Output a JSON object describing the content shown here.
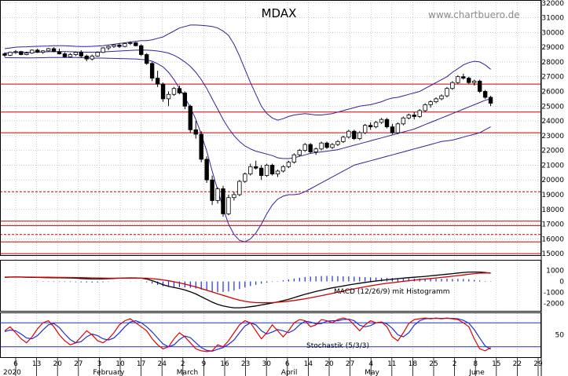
{
  "title": "MDAX",
  "watermark": "www.chartbuero.de",
  "chart_data": {
    "type": "candlestick",
    "price_axis": {
      "ticks": [
        15000,
        16000,
        17000,
        18000,
        19000,
        20000,
        21000,
        22000,
        23000,
        24000,
        25000,
        26000,
        27000,
        28000,
        29000,
        30000,
        31000,
        32000
      ],
      "labels": [
        "15000",
        "16000",
        "17000",
        "18000",
        "19000",
        "20000",
        "21000",
        "22000",
        "23000",
        "24000",
        "25000",
        "26000",
        "27000",
        "28000",
        "29000",
        "30000",
        "31000",
        "32000"
      ],
      "range": [
        14900,
        32200
      ]
    },
    "x_axis": {
      "day_labels": [
        "6",
        "13",
        "20",
        "27",
        "3",
        "10",
        "17",
        "24",
        "2",
        "9",
        "16",
        "23",
        "30",
        "6",
        "14",
        "20",
        "27",
        "4",
        "11",
        "18",
        "25",
        "2",
        "8",
        "15",
        "22",
        "29"
      ],
      "month_labels": [
        "2020",
        "February",
        "March",
        "April",
        "May",
        "June"
      ]
    },
    "horizontal_lines": [
      {
        "value": 26500,
        "style": "solid"
      },
      {
        "value": 24600,
        "style": "solid"
      },
      {
        "value": 23200,
        "style": "solid"
      },
      {
        "value": 19200,
        "style": "dashed"
      },
      {
        "value": 17200,
        "style": "solid"
      },
      {
        "value": 16900,
        "style": "solid"
      },
      {
        "value": 16300,
        "style": "dashed"
      },
      {
        "value": 15800,
        "style": "solid"
      },
      {
        "value": 15000,
        "style": "solid"
      }
    ],
    "candles": [
      [
        28550,
        28650,
        28350,
        28450
      ],
      [
        28450,
        28700,
        28400,
        28650
      ],
      [
        28650,
        28800,
        28550,
        28700
      ],
      [
        28700,
        28750,
        28450,
        28500
      ],
      [
        28500,
        28700,
        28450,
        28600
      ],
      [
        28600,
        28850,
        28550,
        28800
      ],
      [
        28800,
        28900,
        28600,
        28650
      ],
      [
        28650,
        28800,
        28550,
        28750
      ],
      [
        28750,
        28950,
        28700,
        28900
      ],
      [
        28900,
        29000,
        28650,
        28700
      ],
      [
        28700,
        28900,
        28500,
        28550
      ],
      [
        28550,
        28650,
        28300,
        28350
      ],
      [
        28350,
        28600,
        28300,
        28500
      ],
      [
        28500,
        28700,
        28400,
        28650
      ],
      [
        28650,
        28800,
        28300,
        28400
      ],
      [
        28400,
        28500,
        28050,
        28200
      ],
      [
        28200,
        28500,
        28100,
        28400
      ],
      [
        28400,
        28700,
        28350,
        28650
      ],
      [
        28650,
        29000,
        28600,
        28950
      ],
      [
        28950,
        29100,
        28800,
        29050
      ],
      [
        29050,
        29200,
        28950,
        29150
      ],
      [
        29150,
        29250,
        28950,
        29050
      ],
      [
        29050,
        29300,
        29000,
        29250
      ],
      [
        29250,
        29400,
        29150,
        29300
      ],
      [
        29300,
        29350,
        29050,
        29100
      ],
      [
        29100,
        29200,
        28400,
        28500
      ],
      [
        28500,
        28600,
        27800,
        27900
      ],
      [
        27900,
        28000,
        26700,
        26900
      ],
      [
        26900,
        27400,
        26300,
        26500
      ],
      [
        26500,
        26600,
        25300,
        25500
      ],
      [
        25500,
        26000,
        25000,
        25800
      ],
      [
        25800,
        26300,
        25700,
        26200
      ],
      [
        26200,
        26400,
        25800,
        25900
      ],
      [
        25900,
        26000,
        24800,
        25000
      ],
      [
        25000,
        25100,
        23200,
        23400
      ],
      [
        23400,
        24000,
        22800,
        23100
      ],
      [
        23100,
        23300,
        21200,
        21400
      ],
      [
        21400,
        21600,
        19800,
        20000
      ],
      [
        20000,
        20300,
        18300,
        18600
      ],
      [
        18600,
        19500,
        18400,
        19400
      ],
      [
        19400,
        19600,
        17500,
        17700
      ],
      [
        17700,
        19000,
        17600,
        18800
      ],
      [
        18800,
        19200,
        18600,
        19000
      ],
      [
        19000,
        20000,
        18900,
        19900
      ],
      [
        19900,
        20500,
        19800,
        20400
      ],
      [
        20400,
        21100,
        20300,
        20900
      ],
      [
        20900,
        21300,
        20700,
        20800
      ],
      [
        20800,
        21000,
        20000,
        20300
      ],
      [
        20300,
        21100,
        20200,
        21000
      ],
      [
        21000,
        21100,
        20300,
        20400
      ],
      [
        20400,
        20700,
        20200,
        20600
      ],
      [
        20600,
        21000,
        20500,
        20900
      ],
      [
        20900,
        21300,
        20800,
        21200
      ],
      [
        21200,
        21800,
        21100,
        21700
      ],
      [
        21700,
        22100,
        21600,
        22000
      ],
      [
        22000,
        22500,
        21900,
        22400
      ],
      [
        22400,
        22500,
        21800,
        21900
      ],
      [
        21900,
        22200,
        21700,
        22100
      ],
      [
        22100,
        22600,
        22000,
        22500
      ],
      [
        22500,
        22600,
        22100,
        22200
      ],
      [
        22200,
        22500,
        22100,
        22400
      ],
      [
        22400,
        22700,
        22300,
        22600
      ],
      [
        22600,
        23000,
        22500,
        22900
      ],
      [
        22900,
        23400,
        22800,
        23300
      ],
      [
        23300,
        23400,
        22700,
        22800
      ],
      [
        22800,
        23300,
        22700,
        23200
      ],
      [
        23200,
        23800,
        23100,
        23700
      ],
      [
        23700,
        23900,
        23400,
        23600
      ],
      [
        23600,
        24000,
        23500,
        23900
      ],
      [
        23900,
        24200,
        23800,
        24100
      ],
      [
        24100,
        24200,
        23500,
        23600
      ],
      [
        23600,
        23800,
        23100,
        23200
      ],
      [
        23200,
        23900,
        23100,
        23800
      ],
      [
        23800,
        24300,
        23700,
        24200
      ],
      [
        24200,
        24500,
        24100,
        24400
      ],
      [
        24400,
        24600,
        24100,
        24300
      ],
      [
        24300,
        24800,
        24200,
        24700
      ],
      [
        24700,
        25200,
        24600,
        25100
      ],
      [
        25100,
        25400,
        24900,
        25300
      ],
      [
        25300,
        25600,
        25200,
        25500
      ],
      [
        25500,
        25800,
        25400,
        25700
      ],
      [
        25700,
        26300,
        25600,
        26200
      ],
      [
        26200,
        26700,
        26100,
        26600
      ],
      [
        26600,
        27100,
        26500,
        27000
      ],
      [
        27000,
        27200,
        26800,
        26900
      ],
      [
        26900,
        27000,
        26500,
        26600
      ],
      [
        26600,
        26800,
        26400,
        26700
      ],
      [
        26700,
        26800,
        25900,
        26000
      ],
      [
        26000,
        26100,
        25500,
        25600
      ],
      [
        25600,
        25700,
        25000,
        25200
      ]
    ],
    "bollinger_upper": [
      28900,
      28950,
      29000,
      29020,
      29030,
      29050,
      29060,
      29070,
      29080,
      29100,
      29100,
      29100,
      29080,
      29060,
      29050,
      29050,
      29060,
      29080,
      29100,
      29150,
      29200,
      29250,
      29300,
      29350,
      29400,
      29450,
      29450,
      29500,
      29600,
      29700,
      29900,
      30100,
      30300,
      30400,
      30500,
      30500,
      30480,
      30450,
      30400,
      30300,
      30100,
      29800,
      29200,
      28400,
      27500,
      26600,
      25800,
      25000,
      24500,
      24200,
      24050,
      24150,
      24300,
      24400,
      24450,
      24500,
      24450,
      24400,
      24400,
      24450,
      24500,
      24600,
      24700,
      24800,
      24900,
      25000,
      25050,
      25100,
      25200,
      25300,
      25450,
      25550,
      25600,
      25700,
      25800,
      25900,
      26000,
      26200,
      26400,
      26600,
      26800,
      27000,
      27300,
      27550,
      27800,
      27950,
      28050,
      28000,
      27800,
      27500
    ],
    "bollinger_middle": [
      28600,
      28620,
      28640,
      28650,
      28650,
      28660,
      28670,
      28680,
      28690,
      28700,
      28700,
      28700,
      28690,
      28680,
      28670,
      28660,
      28660,
      28670,
      28680,
      28700,
      28720,
      28740,
      28760,
      28780,
      28800,
      28810,
      28800,
      28780,
      28740,
      28680,
      28600,
      28450,
      28250,
      28000,
      27700,
      27300,
      26800,
      26200,
      25500,
      24800,
      24100,
      23500,
      23000,
      22600,
      22300,
      22100,
      21950,
      21850,
      21750,
      21650,
      21500,
      21450,
      21450,
      21500,
      21600,
      21700,
      21800,
      21850,
      21900,
      21950,
      22000,
      22050,
      22150,
      22250,
      22350,
      22450,
      22550,
      22650,
      22750,
      22850,
      22950,
      23050,
      23150,
      23250,
      23350,
      23450,
      23600,
      23750,
      23900,
      24050,
      24200,
      24350,
      24500,
      24650,
      24800,
      24950,
      25100,
      25250,
      25400,
      25500
    ],
    "bollinger_lower": [
      28300,
      28290,
      28280,
      28280,
      28270,
      28270,
      28280,
      28290,
      28300,
      28300,
      28300,
      28300,
      28300,
      28300,
      28290,
      28270,
      28260,
      28260,
      28260,
      28250,
      28240,
      28230,
      28220,
      28210,
      28200,
      28170,
      28150,
      28050,
      27880,
      27660,
      27300,
      26800,
      26200,
      25600,
      24900,
      24100,
      23100,
      21950,
      20600,
      19300,
      18100,
      17000,
      16300,
      15900,
      15800,
      16000,
      16400,
      17000,
      17700,
      18300,
      18700,
      18900,
      19000,
      19000,
      19050,
      19200,
      19400,
      19600,
      19800,
      20000,
      20200,
      20400,
      20600,
      20800,
      21000,
      21100,
      21200,
      21300,
      21400,
      21500,
      21600,
      21700,
      21800,
      21900,
      22000,
      22100,
      22200,
      22300,
      22400,
      22500,
      22600,
      22650,
      22700,
      22800,
      22900,
      23000,
      23100,
      23200,
      23400,
      23600
    ],
    "macd": {
      "label": "MACD (12/26/9) mit Histogramm",
      "ticks": [
        1000,
        0,
        -1000,
        -2000
      ],
      "labels": [
        "1000",
        "0",
        "-1000",
        "-2000"
      ],
      "range": [
        -2700,
        1700
      ],
      "macd_line": [
        380,
        400,
        410,
        400,
        390,
        380,
        370,
        360,
        350,
        340,
        340,
        330,
        320,
        300,
        270,
        250,
        230,
        230,
        240,
        260,
        280,
        300,
        320,
        330,
        330,
        300,
        220,
        80,
        -100,
        -300,
        -450,
        -550,
        -650,
        -780,
        -950,
        -1150,
        -1400,
        -1650,
        -1900,
        -2100,
        -2250,
        -2350,
        -2420,
        -2420,
        -2380,
        -2320,
        -2250,
        -2160,
        -2070,
        -1980,
        -1880,
        -1760,
        -1630,
        -1480,
        -1330,
        -1180,
        -1050,
        -920,
        -800,
        -690,
        -590,
        -500,
        -410,
        -320,
        -240,
        -160,
        -90,
        -20,
        40,
        100,
        160,
        210,
        260,
        310,
        350,
        390,
        430,
        470,
        520,
        570,
        620,
        670,
        720,
        780,
        830,
        860,
        870,
        860,
        820,
        760
      ],
      "signal_line": [
        400,
        410,
        410,
        410,
        405,
        400,
        395,
        390,
        385,
        380,
        375,
        370,
        365,
        360,
        350,
        340,
        330,
        320,
        310,
        300,
        300,
        300,
        305,
        310,
        315,
        310,
        300,
        260,
        210,
        140,
        60,
        -30,
        -130,
        -240,
        -370,
        -500,
        -650,
        -800,
        -960,
        -1120,
        -1280,
        -1430,
        -1580,
        -1720,
        -1830,
        -1900,
        -1940,
        -1960,
        -1960,
        -1940,
        -1910,
        -1870,
        -1810,
        -1750,
        -1670,
        -1590,
        -1500,
        -1400,
        -1300,
        -1200,
        -1100,
        -990,
        -880,
        -780,
        -680,
        -580,
        -490,
        -400,
        -320,
        -240,
        -170,
        -110,
        -50,
        10,
        70,
        120,
        170,
        220,
        270,
        320,
        370,
        420,
        480,
        540,
        600,
        660,
        720,
        760,
        780,
        790
      ]
    },
    "stochastic": {
      "label": "Stochastik (5/3/3)",
      "ticks": [
        50
      ],
      "labels": [
        "50"
      ],
      "range": [
        0,
        100
      ],
      "reference_lines": [
        80,
        20
      ],
      "k_line": [
        60,
        70,
        55,
        40,
        30,
        45,
        65,
        80,
        85,
        70,
        50,
        35,
        25,
        30,
        45,
        60,
        50,
        35,
        30,
        40,
        55,
        75,
        85,
        90,
        80,
        70,
        60,
        40,
        25,
        15,
        20,
        40,
        55,
        45,
        30,
        15,
        10,
        8,
        10,
        25,
        20,
        35,
        55,
        75,
        85,
        80,
        60,
        40,
        55,
        75,
        60,
        45,
        60,
        80,
        88,
        85,
        70,
        75,
        88,
        85,
        80,
        88,
        92,
        88,
        75,
        60,
        75,
        85,
        80,
        82,
        70,
        45,
        35,
        55,
        78,
        88,
        90,
        92,
        90,
        92,
        90,
        92,
        90,
        88,
        80,
        70,
        40,
        15,
        10,
        18
      ],
      "d_line": [
        58,
        62,
        60,
        52,
        42,
        40,
        48,
        62,
        75,
        78,
        68,
        52,
        38,
        30,
        33,
        45,
        52,
        48,
        40,
        37,
        42,
        55,
        70,
        82,
        85,
        80,
        70,
        57,
        42,
        27,
        20,
        25,
        38,
        47,
        43,
        30,
        18,
        11,
        9,
        14,
        18,
        26,
        37,
        55,
        72,
        80,
        75,
        60,
        52,
        57,
        63,
        60,
        55,
        62,
        75,
        84,
        82,
        77,
        78,
        84,
        85,
        85,
        88,
        89,
        85,
        74,
        70,
        73,
        80,
        82,
        77,
        66,
        50,
        45,
        55,
        74,
        85,
        90,
        91,
        91,
        91,
        91,
        91,
        90,
        86,
        79,
        63,
        42,
        22,
        14
      ]
    }
  },
  "colors": {
    "candle_up": "#ffffff",
    "candle_down": "#000000",
    "candle_edge": "#000000",
    "bollinger": "#3a1f9a",
    "hline": "#c80000",
    "grid": "#a8a8a8",
    "macd": "#000000",
    "signal": "#d00000",
    "histogram": "#1c2fd8",
    "stoch_k": "#e00000",
    "stoch_d": "#1c2fd8",
    "stoch_ref": "#1c2fd8"
  }
}
